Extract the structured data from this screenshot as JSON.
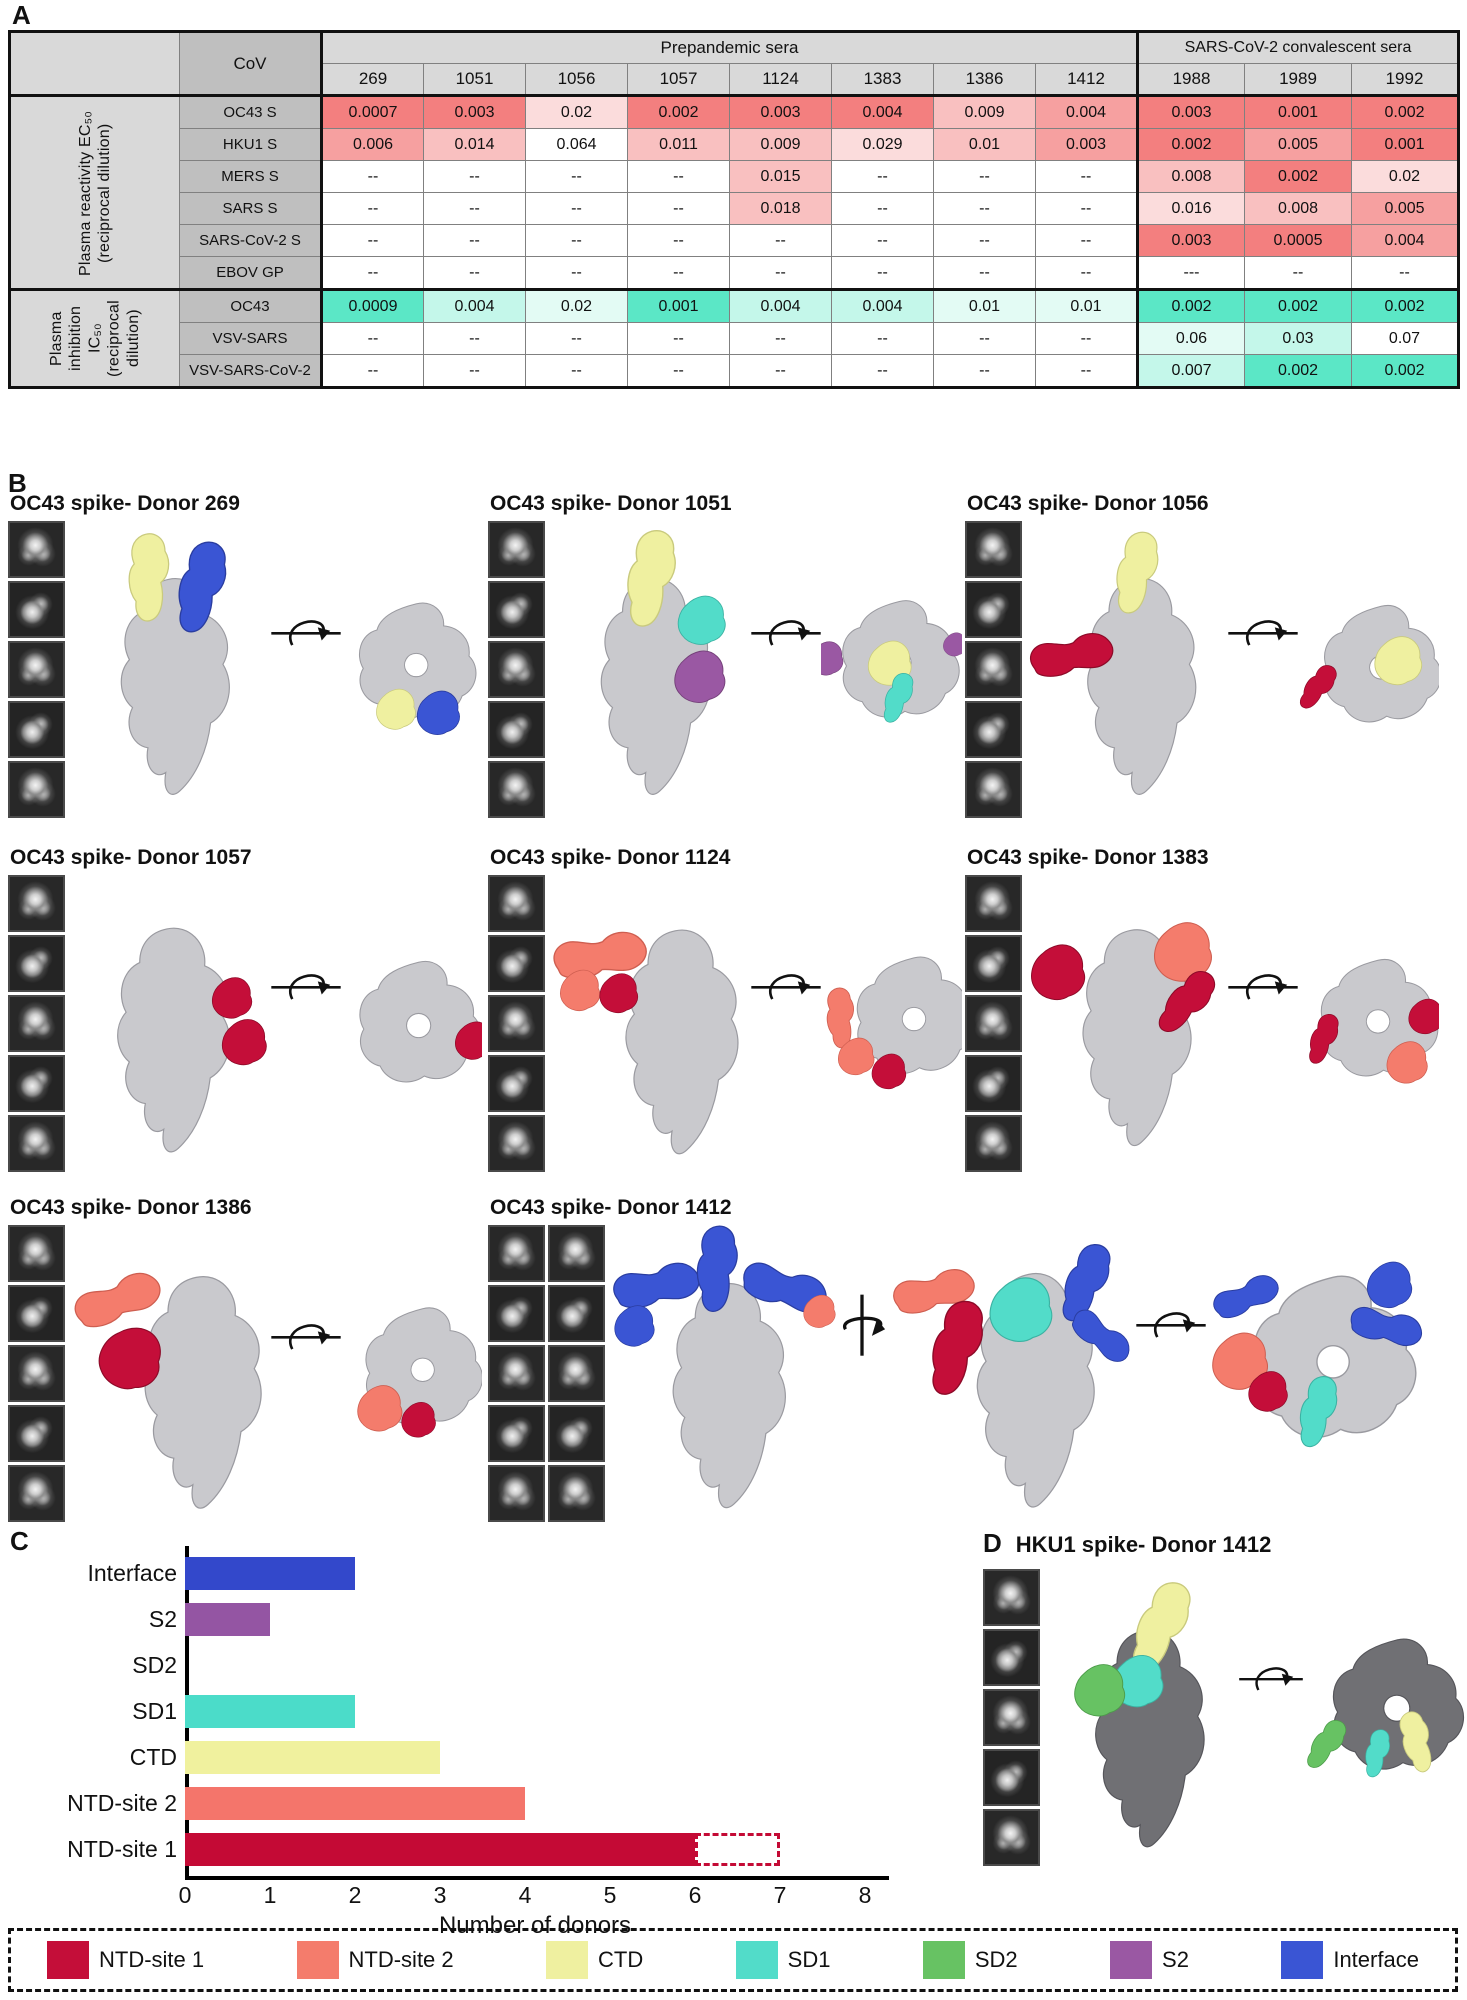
{
  "panelA": {
    "label": "A"
  },
  "panelB": {
    "label": "B"
  },
  "panelC": {
    "label": "C"
  },
  "table": {
    "cov_header": "CoV",
    "group_prepandemic": "Prepandemic sera",
    "group_convalescent": "SARS-CoV-2 convalescent sera",
    "columns": [
      "269",
      "1051",
      "1056",
      "1057",
      "1124",
      "1383",
      "1386",
      "1412",
      "1988",
      "1989",
      "1992"
    ],
    "sections": [
      {
        "group_label": "Plasma reactivity EC₅₀ (reciprocal dilution)",
        "theme": "r",
        "rows": [
          {
            "label": "OC43 S",
            "values": [
              "0.0007",
              "0.003",
              "0.02",
              "0.002",
              "0.003",
              "0.004",
              "0.009",
              "0.004",
              "0.003",
              "0.001",
              "0.002"
            ],
            "levels": [
              4,
              4,
              1,
              4,
              4,
              4,
              2,
              3,
              4,
              4,
              4
            ]
          },
          {
            "label": "HKU1 S",
            "values": [
              "0.006",
              "0.014",
              "0.064",
              "0.011",
              "0.009",
              "0.029",
              "0.01",
              "0.003",
              "0.002",
              "0.005",
              "0.001"
            ],
            "levels": [
              3,
              2,
              0,
              2,
              2,
              1,
              2,
              3,
              4,
              3,
              4
            ]
          },
          {
            "label": "MERS S",
            "values": [
              "--",
              "--",
              "--",
              "--",
              "0.015",
              "--",
              "--",
              "--",
              "0.008",
              "0.002",
              "0.02"
            ],
            "levels": [
              0,
              0,
              0,
              0,
              2,
              0,
              0,
              0,
              2,
              4,
              1
            ]
          },
          {
            "label": "SARS S",
            "values": [
              "--",
              "--",
              "--",
              "--",
              "0.018",
              "--",
              "--",
              "--",
              "0.016",
              "0.008",
              "0.005"
            ],
            "levels": [
              0,
              0,
              0,
              0,
              2,
              0,
              0,
              0,
              1,
              2,
              3
            ]
          },
          {
            "label": "SARS-CoV-2 S",
            "values": [
              "--",
              "--",
              "--",
              "--",
              "--",
              "--",
              "--",
              "--",
              "0.003",
              "0.0005",
              "0.004"
            ],
            "levels": [
              0,
              0,
              0,
              0,
              0,
              0,
              0,
              0,
              4,
              4,
              3
            ]
          },
          {
            "label": "EBOV GP",
            "values": [
              "--",
              "--",
              "--",
              "--",
              "--",
              "--",
              "--",
              "--",
              "---",
              "--",
              "--"
            ],
            "levels": [
              0,
              0,
              0,
              0,
              0,
              0,
              0,
              0,
              0,
              0,
              0
            ]
          }
        ]
      },
      {
        "group_label": "Plasma inhibition IC₅₀ (reciprocal dilution)",
        "theme": "g",
        "rows": [
          {
            "label": "OC43",
            "values": [
              "0.0009",
              "0.004",
              "0.02",
              "0.001",
              "0.004",
              "0.004",
              "0.01",
              "0.01",
              "0.002",
              "0.002",
              "0.002"
            ],
            "levels": [
              4,
              2,
              1,
              4,
              2,
              2,
              1,
              1,
              4,
              4,
              4
            ]
          },
          {
            "label": "VSV-SARS",
            "values": [
              "--",
              "--",
              "--",
              "--",
              "--",
              "--",
              "--",
              "--",
              "0.06",
              "0.03",
              "0.07"
            ],
            "levels": [
              0,
              0,
              0,
              0,
              0,
              0,
              0,
              0,
              1,
              2,
              0
            ]
          },
          {
            "label": "VSV-SARS-CoV-2",
            "values": [
              "--",
              "--",
              "--",
              "--",
              "--",
              "--",
              "--",
              "--",
              "0.007",
              "0.002",
              "0.002"
            ],
            "levels": [
              0,
              0,
              0,
              0,
              0,
              0,
              0,
              0,
              2,
              4,
              4
            ]
          }
        ]
      }
    ]
  },
  "panelB_panels": [
    {
      "title": "OC43 spike- Donor 269",
      "thumbnails": 5,
      "epitopes": [
        "CTD",
        "Interface"
      ]
    },
    {
      "title": "OC43 spike- Donor 1051",
      "thumbnails": 5,
      "epitopes": [
        "CTD",
        "SD1",
        "S2"
      ]
    },
    {
      "title": "OC43 spike- Donor 1056",
      "thumbnails": 5,
      "epitopes": [
        "CTD",
        "NTD-site 1"
      ]
    },
    {
      "title": "OC43 spike- Donor 1057",
      "thumbnails": 5,
      "epitopes": [
        "NTD-site 1"
      ]
    },
    {
      "title": "OC43 spike- Donor 1124",
      "thumbnails": 5,
      "epitopes": [
        "NTD-site 2",
        "NTD-site 1"
      ]
    },
    {
      "title": "OC43 spike- Donor 1383",
      "thumbnails": 5,
      "epitopes": [
        "NTD-site 1",
        "NTD-site 2"
      ]
    },
    {
      "title": "OC43 spike- Donor 1386",
      "thumbnails": 5,
      "epitopes": [
        "NTD-site 2",
        "NTD-site 1"
      ]
    },
    {
      "title": "OC43 spike- Donor 1412",
      "thumbnails": 10,
      "epitopes": [
        "Interface",
        "NTD-site 2",
        "NTD-site 1",
        "SD1"
      ]
    }
  ],
  "chart_data": {
    "type": "bar",
    "orientation": "horizontal",
    "categories": [
      "Interface",
      "S2",
      "SD2",
      "SD1",
      "CTD",
      "NTD-site 2",
      "NTD-site 1"
    ],
    "values": [
      2,
      1,
      0,
      2,
      3,
      4,
      6
    ],
    "bar_colors": [
      "#3348CB",
      "#9455A3",
      "#67C263",
      "#4BDCC9",
      "#F0F19E",
      "#F4756B",
      "#C40A35"
    ],
    "dashed_extension": {
      "category": "NTD-site 1",
      "from": 6,
      "to": 7,
      "color": "#C40A35"
    },
    "xlabel": "Number of donors",
    "xlim": [
      0,
      8
    ],
    "xticks": [
      "0",
      "1",
      "2",
      "3",
      "4",
      "5",
      "6",
      "7",
      "8"
    ],
    "grid": false
  },
  "panelD": {
    "label": "D",
    "title": "HKU1 spike- Donor 1412",
    "thumbnails": 5,
    "epitopes": [
      "CTD",
      "SD1",
      "SD2"
    ]
  },
  "legend": {
    "items": [
      {
        "label": "NTD-site 1",
        "color": "#C40E39"
      },
      {
        "label": "NTD-site 2",
        "color": "#F47C6C"
      },
      {
        "label": "CTD",
        "color": "#EFF0A0"
      },
      {
        "label": "SD1",
        "color": "#52DCC9"
      },
      {
        "label": "SD2",
        "color": "#67C263"
      },
      {
        "label": "S2",
        "color": "#9A58A3"
      },
      {
        "label": "Interface",
        "color": "#3A55D4"
      }
    ]
  }
}
